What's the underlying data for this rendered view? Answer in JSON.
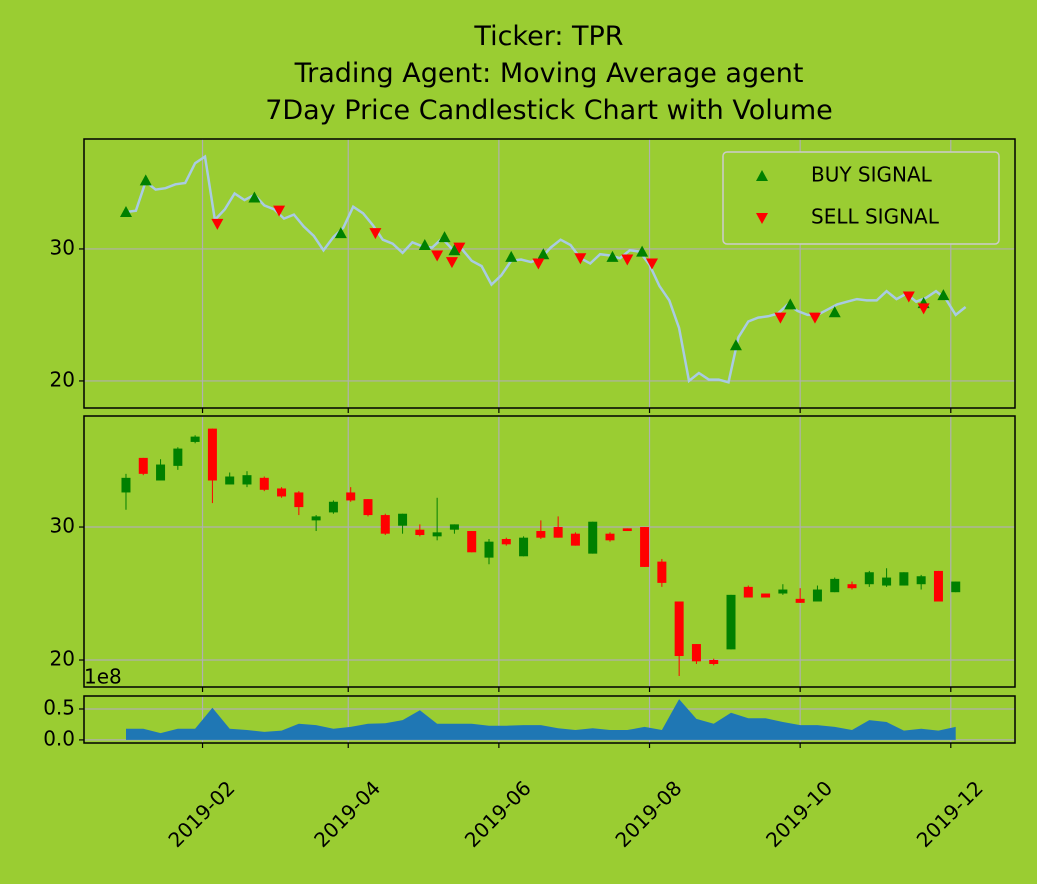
{
  "chart_data": [
    {
      "type": "line",
      "title_lines": [
        "Ticker: TPR",
        "Trading Agent: Moving Average agent",
        "7Day Price Candlestick Chart with Volume"
      ],
      "x": [
        "2019-01-01",
        "2019-01-05",
        "2019-01-09",
        "2019-01-13",
        "2019-01-17",
        "2019-01-21",
        "2019-01-25",
        "2019-01-29",
        "2019-02-02",
        "2019-02-06",
        "2019-02-10",
        "2019-02-14",
        "2019-02-18",
        "2019-02-22",
        "2019-02-26",
        "2019-03-02",
        "2019-03-06",
        "2019-03-10",
        "2019-03-14",
        "2019-03-18",
        "2019-03-22",
        "2019-03-26",
        "2019-03-30",
        "2019-04-03",
        "2019-04-07",
        "2019-04-11",
        "2019-04-15",
        "2019-04-19",
        "2019-04-23",
        "2019-04-27",
        "2019-05-01",
        "2019-05-05",
        "2019-05-09",
        "2019-05-13",
        "2019-05-17",
        "2019-05-21",
        "2019-05-25",
        "2019-05-29",
        "2019-06-02",
        "2019-06-06",
        "2019-06-10",
        "2019-06-14",
        "2019-06-18",
        "2019-06-22",
        "2019-06-26",
        "2019-06-30",
        "2019-07-04",
        "2019-07-08",
        "2019-07-12",
        "2019-07-16",
        "2019-07-20",
        "2019-07-24",
        "2019-07-28",
        "2019-08-01",
        "2019-08-05",
        "2019-08-09",
        "2019-08-13",
        "2019-08-17",
        "2019-08-21",
        "2019-08-25",
        "2019-08-29",
        "2019-09-02",
        "2019-09-06",
        "2019-09-10",
        "2019-09-14",
        "2019-09-18",
        "2019-09-22",
        "2019-09-26",
        "2019-09-30",
        "2019-10-04",
        "2019-10-08",
        "2019-10-12",
        "2019-10-16",
        "2019-10-20",
        "2019-10-24",
        "2019-10-28",
        "2019-11-01",
        "2019-11-05",
        "2019-11-09",
        "2019-11-13",
        "2019-11-17",
        "2019-11-21",
        "2019-11-25",
        "2019-11-29",
        "2019-12-03",
        "2019-12-07"
      ],
      "values": [
        32.8,
        32.9,
        35.1,
        34.5,
        34.6,
        34.9,
        35.0,
        36.5,
        37.0,
        32.2,
        33.0,
        34.2,
        33.7,
        34.1,
        33.3,
        33.0,
        32.3,
        32.6,
        31.7,
        31.0,
        29.9,
        30.9,
        31.6,
        33.2,
        32.7,
        31.8,
        30.7,
        30.4,
        29.7,
        30.5,
        30.2,
        30.1,
        30.8,
        30.0,
        30.0,
        29.1,
        28.7,
        27.3,
        28.0,
        29.1,
        29.2,
        29.0,
        29.3,
        30.1,
        30.7,
        30.3,
        29.3,
        28.9,
        29.6,
        29.5,
        29.3,
        29.9,
        29.8,
        28.8,
        27.2,
        26.1,
        24.0,
        20.0,
        20.6,
        20.1,
        20.1,
        19.9,
        23.3,
        24.5,
        24.8,
        24.9,
        25.1,
        25.8,
        25.3,
        25.0,
        25.0,
        25.4,
        25.8,
        26.0,
        26.2,
        26.1,
        26.1,
        26.8,
        26.2,
        26.6,
        26.0,
        26.3,
        26.8,
        26.2,
        25.0,
        25.6
      ],
      "color": "#a9cbe3",
      "signals": [
        {
          "name": "BUY SIGNAL",
          "color": "#008000",
          "marker": "triangle-up",
          "x": [
            "2019-01-01",
            "2019-01-09",
            "2019-02-22",
            "2019-03-29",
            "2019-05-02",
            "2019-05-10",
            "2019-05-14",
            "2019-06-06",
            "2019-06-19",
            "2019-07-17",
            "2019-07-29",
            "2019-09-05",
            "2019-09-27",
            "2019-10-15",
            "2019-11-20",
            "2019-11-28"
          ],
          "values": [
            32.8,
            35.2,
            33.9,
            31.2,
            30.3,
            30.9,
            29.9,
            29.4,
            29.6,
            29.4,
            29.8,
            22.7,
            25.8,
            25.2,
            25.9,
            26.5
          ]
        },
        {
          "name": "SELL SIGNAL",
          "color": "#ff0000",
          "marker": "triangle-down",
          "x": [
            "2019-02-07",
            "2019-03-04",
            "2019-04-12",
            "2019-05-07",
            "2019-05-13",
            "2019-05-16",
            "2019-06-17",
            "2019-07-04",
            "2019-07-23",
            "2019-08-02",
            "2019-09-23",
            "2019-10-07",
            "2019-11-14",
            "2019-11-20"
          ],
          "values": [
            31.9,
            32.9,
            31.2,
            29.5,
            29.0,
            30.1,
            28.9,
            29.3,
            29.2,
            28.9,
            24.8,
            24.8,
            26.4,
            25.5
          ]
        }
      ],
      "legend": "upper right",
      "ylim": [
        17.95,
        38.33
      ],
      "yticks": [
        20,
        30
      ],
      "grid": true
    },
    {
      "type": "candlestick",
      "x": [
        "2019-01-01",
        "2019-01-08",
        "2019-01-15",
        "2019-01-22",
        "2019-01-29",
        "2019-02-05",
        "2019-02-12",
        "2019-02-19",
        "2019-02-26",
        "2019-03-05",
        "2019-03-12",
        "2019-03-19",
        "2019-03-26",
        "2019-04-02",
        "2019-04-09",
        "2019-04-16",
        "2019-04-23",
        "2019-04-30",
        "2019-05-07",
        "2019-05-14",
        "2019-05-21",
        "2019-05-28",
        "2019-06-04",
        "2019-06-11",
        "2019-06-18",
        "2019-06-25",
        "2019-07-02",
        "2019-07-09",
        "2019-07-16",
        "2019-07-23",
        "2019-07-30",
        "2019-08-06",
        "2019-08-13",
        "2019-08-20",
        "2019-08-27",
        "2019-09-03",
        "2019-09-10",
        "2019-09-17",
        "2019-09-24",
        "2019-10-01",
        "2019-10-08",
        "2019-10-15",
        "2019-10-22",
        "2019-10-29",
        "2019-11-05",
        "2019-11-12",
        "2019-11-19",
        "2019-11-26",
        "2019-12-03"
      ],
      "open": [
        32.6,
        35.2,
        33.5,
        34.6,
        36.4,
        37.4,
        33.2,
        33.2,
        33.7,
        32.9,
        32.6,
        30.5,
        31.1,
        32.6,
        32.1,
        30.9,
        30.1,
        29.8,
        29.3,
        29.8,
        29.7,
        27.7,
        29.1,
        27.8,
        29.7,
        30.0,
        29.5,
        28.0,
        29.5,
        29.9,
        30.0,
        27.4,
        24.4,
        21.2,
        20.0,
        20.8,
        25.5,
        25.0,
        25.0,
        24.6,
        24.4,
        25.1,
        25.7,
        25.7,
        25.6,
        25.6,
        25.7,
        26.7,
        25.1
      ],
      "high": [
        34.0,
        35.2,
        35.1,
        36.0,
        36.9,
        37.4,
        34.1,
        34.2,
        33.8,
        33.0,
        32.7,
        30.9,
        32.0,
        33.0,
        32.1,
        31.0,
        31.0,
        30.2,
        32.2,
        30.2,
        29.7,
        29.1,
        29.2,
        29.3,
        30.5,
        30.8,
        29.6,
        30.4,
        29.6,
        29.9,
        30.0,
        27.6,
        24.4,
        21.2,
        20.1,
        24.9,
        25.6,
        25.0,
        25.7,
        25.4,
        25.6,
        26.2,
        25.9,
        26.7,
        26.9,
        26.6,
        26.4,
        26.7,
        25.9
      ],
      "low": [
        31.3,
        33.9,
        33.5,
        34.3,
        36.3,
        31.8,
        33.2,
        33.0,
        32.7,
        32.2,
        30.9,
        29.7,
        31.0,
        31.9,
        30.8,
        29.4,
        29.5,
        29.3,
        29.0,
        29.5,
        28.1,
        27.2,
        28.6,
        27.8,
        29.1,
        29.2,
        28.6,
        28.0,
        28.9,
        29.7,
        27.0,
        25.5,
        18.8,
        19.7,
        19.6,
        20.8,
        24.7,
        24.7,
        24.9,
        24.3,
        24.4,
        25.1,
        25.3,
        25.5,
        25.5,
        25.6,
        25.3,
        24.4,
        25.1
      ],
      "close": [
        33.7,
        34.0,
        34.7,
        35.9,
        36.8,
        33.5,
        33.8,
        33.9,
        32.8,
        32.3,
        31.5,
        30.8,
        31.9,
        32.0,
        30.9,
        29.5,
        31.0,
        29.4,
        29.6,
        30.2,
        28.1,
        28.9,
        28.7,
        29.2,
        29.2,
        29.2,
        28.6,
        30.4,
        29.0,
        29.7,
        27.0,
        25.8,
        20.3,
        19.9,
        19.7,
        24.9,
        24.7,
        24.7,
        25.3,
        24.3,
        25.3,
        26.1,
        25.4,
        26.6,
        26.2,
        26.6,
        26.3,
        24.4,
        25.9
      ],
      "up_color": "#008000",
      "down_color": "#ff0000",
      "ylim": [
        17.97,
        38.35
      ],
      "yticks": [
        20,
        30
      ],
      "grid": true
    },
    {
      "type": "area",
      "x": [
        "2019-01-01",
        "2019-01-08",
        "2019-01-15",
        "2019-01-22",
        "2019-01-29",
        "2019-02-05",
        "2019-02-12",
        "2019-02-19",
        "2019-02-26",
        "2019-03-05",
        "2019-03-12",
        "2019-03-19",
        "2019-03-26",
        "2019-04-02",
        "2019-04-09",
        "2019-04-16",
        "2019-04-23",
        "2019-04-30",
        "2019-05-07",
        "2019-05-14",
        "2019-05-21",
        "2019-05-28",
        "2019-06-04",
        "2019-06-11",
        "2019-06-18",
        "2019-06-25",
        "2019-07-02",
        "2019-07-09",
        "2019-07-16",
        "2019-07-23",
        "2019-07-30",
        "2019-08-06",
        "2019-08-13",
        "2019-08-20",
        "2019-08-27",
        "2019-09-03",
        "2019-09-10",
        "2019-09-17",
        "2019-09-24",
        "2019-10-01",
        "2019-10-08",
        "2019-10-15",
        "2019-10-22",
        "2019-10-29",
        "2019-11-05",
        "2019-11-12",
        "2019-11-19",
        "2019-11-26",
        "2019-12-03"
      ],
      "values": [
        0.18,
        0.18,
        0.11,
        0.18,
        0.18,
        0.52,
        0.18,
        0.16,
        0.13,
        0.15,
        0.26,
        0.24,
        0.18,
        0.21,
        0.26,
        0.27,
        0.32,
        0.48,
        0.26,
        0.26,
        0.26,
        0.23,
        0.23,
        0.24,
        0.24,
        0.19,
        0.16,
        0.19,
        0.16,
        0.16,
        0.21,
        0.16,
        0.66,
        0.34,
        0.26,
        0.44,
        0.35,
        0.35,
        0.29,
        0.24,
        0.24,
        0.21,
        0.16,
        0.32,
        0.29,
        0.15,
        0.18,
        0.15,
        0.21
      ],
      "color": "#1f77b4",
      "offset_text": "1e8",
      "ylim": [
        -0.05,
        0.71
      ],
      "yticks": [
        {
          "value": 0,
          "label": "0.0"
        },
        {
          "value": 0.5,
          "label": "0.5"
        }
      ],
      "grid": true,
      "xlim": [
        "2018-12-15",
        "2019-12-27"
      ],
      "xticks": [
        {
          "value": "2019-02-01",
          "label": "2019-02"
        },
        {
          "value": "2019-04-01",
          "label": "2019-04"
        },
        {
          "value": "2019-06-01",
          "label": "2019-06"
        },
        {
          "value": "2019-08-01",
          "label": "2019-08"
        },
        {
          "value": "2019-10-01",
          "label": "2019-10"
        },
        {
          "value": "2019-12-01",
          "label": "2019-12"
        }
      ]
    }
  ]
}
